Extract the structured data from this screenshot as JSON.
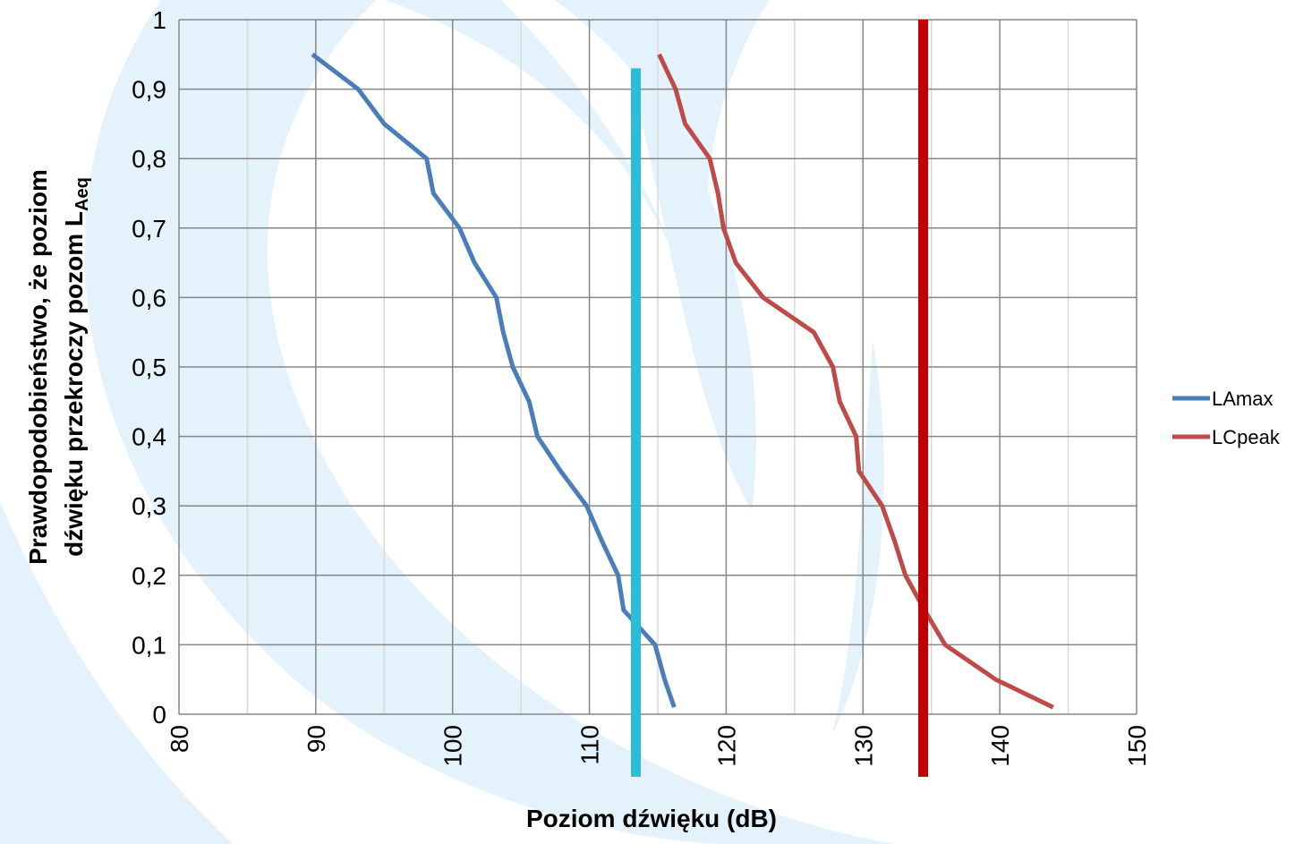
{
  "chart_data": {
    "type": "line",
    "x_label": "Poziom dźwięku (dB)",
    "y_label": [
      "Prawdopodobieństwo,  że  poziom",
      "dźwięku przekroczy  pozom L"
    ],
    "y_label_subscript": "Aeq",
    "xlim": [
      80,
      150
    ],
    "xticks": [
      80,
      90,
      100,
      110,
      120,
      130,
      140,
      150
    ],
    "x_minor_grid": [
      85,
      95,
      105,
      115,
      125,
      135,
      145
    ],
    "ylim": [
      0,
      1
    ],
    "yticks": [
      0,
      {
        "value": 0.1,
        "label": "0,1"
      },
      {
        "value": 0.2,
        "label": "0,2"
      },
      {
        "value": 0.3,
        "label": "0,3"
      },
      {
        "value": 0.4,
        "label": "0,4"
      },
      {
        "value": 0.5,
        "label": "0,5"
      },
      {
        "value": 0.6,
        "label": "0,6"
      },
      {
        "value": 0.7,
        "label": "0,7"
      },
      {
        "value": 0.8,
        "label": "0,8"
      },
      {
        "value": 0.9,
        "label": "0,9"
      },
      1
    ],
    "grid": true,
    "legend": "right",
    "series": [
      {
        "name": "LAmax",
        "color": "#4a7ebb",
        "x": [
          89.75,
          93.1,
          95.0,
          98.1,
          98.6,
          100.5,
          101.6,
          103.2,
          103.7,
          104.4,
          105.6,
          106.2,
          107.9,
          109.8,
          110.9,
          112.1,
          112.5,
          114.8,
          115.5,
          116.2
        ],
        "values": [
          0.95,
          0.9,
          0.85,
          0.8,
          0.75,
          0.7,
          0.65,
          0.6,
          0.55,
          0.5,
          0.45,
          0.4,
          0.35,
          0.3,
          0.25,
          0.2,
          0.15,
          0.1,
          0.05,
          0.01
        ]
      },
      {
        "name": "LCpeak",
        "color": "#be4b48",
        "x": [
          115.1,
          116.3,
          117.0,
          118.8,
          119.4,
          119.8,
          120.7,
          122.7,
          126.4,
          127.8,
          128.3,
          129.5,
          129.7,
          131.4,
          132.3,
          133.1,
          134.5,
          136.0,
          139.7,
          143.9
        ],
        "values": [
          0.95,
          0.9,
          0.85,
          0.8,
          0.75,
          0.7,
          0.65,
          0.6,
          0.55,
          0.5,
          0.45,
          0.4,
          0.35,
          0.3,
          0.25,
          0.2,
          0.15,
          0.1,
          0.05,
          0.01
        ]
      }
    ],
    "vertical_lines": [
      {
        "x": 113.4,
        "ymin": -0.09,
        "ymax": 0.93,
        "color": "#2bbcd9"
      },
      {
        "x": 134.4,
        "ymin": -0.09,
        "ymax": 1,
        "color": "#c00000"
      }
    ]
  }
}
